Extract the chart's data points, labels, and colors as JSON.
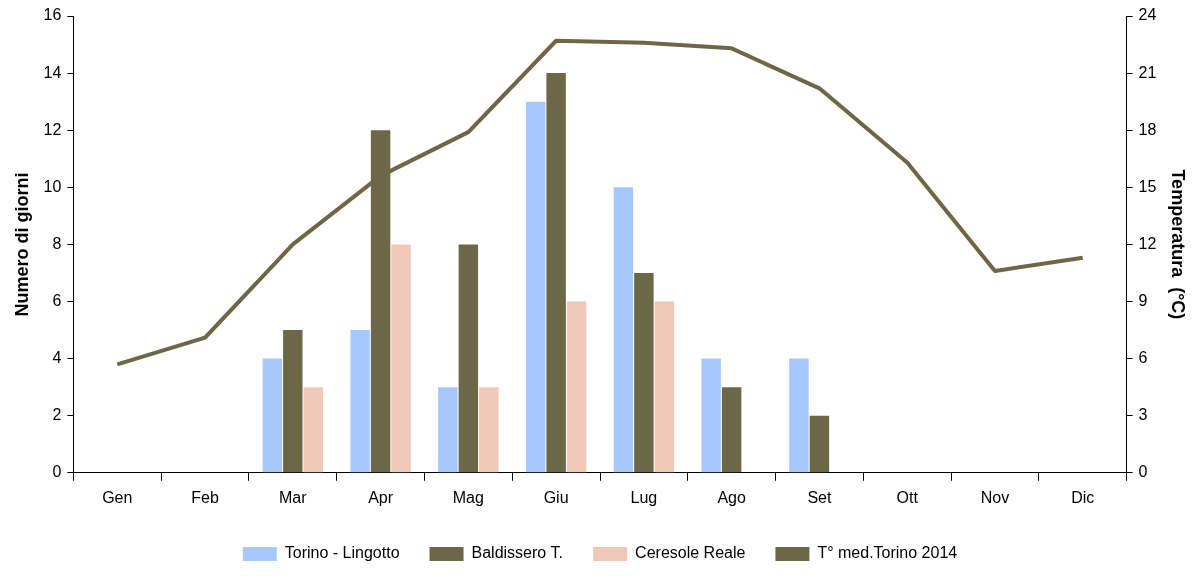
{
  "chart_data": {
    "type": "bar",
    "ylabel": "Numero di giorni",
    "y2label": "Temperatura  (°C)",
    "categories": [
      "Gen",
      "Feb",
      "Mar",
      "Apr",
      "Mag",
      "Giu",
      "Lug",
      "Ago",
      "Set",
      "Ott",
      "Nov",
      "Dic"
    ],
    "series": [
      {
        "name": "Torino - Lingotto",
        "color": "#a6c8ff",
        "values": [
          null,
          null,
          4,
          5,
          3,
          13,
          10,
          4,
          4,
          null,
          null,
          null
        ]
      },
      {
        "name": "Baldissero T.",
        "color": "#6b6747",
        "values": [
          null,
          null,
          5,
          12,
          8,
          14,
          7,
          3,
          2,
          null,
          null,
          null
        ]
      },
      {
        "name": "Ceresole Reale",
        "color": "#f0c8b8",
        "values": [
          null,
          null,
          3,
          8,
          3,
          6,
          6,
          null,
          null,
          null,
          null,
          null
        ]
      },
      {
        "name": "T° med.Torino 2014",
        "type": "line",
        "axis": "y2",
        "color": "#6b6747",
        "values": [
          5.7,
          7.1,
          12.0,
          15.6,
          17.9,
          22.7,
          22.6,
          22.3,
          20.2,
          16.3,
          10.6,
          11.3
        ]
      }
    ],
    "ylim": [
      0,
      16
    ],
    "yticks": [
      0,
      2,
      4,
      6,
      8,
      10,
      12,
      14,
      16
    ],
    "y2lim": [
      0,
      24
    ],
    "y2ticks": [
      0,
      3,
      6,
      9,
      12,
      15,
      18,
      21,
      24
    ],
    "grid": false,
    "legend": "bottom",
    "marker": "none"
  }
}
